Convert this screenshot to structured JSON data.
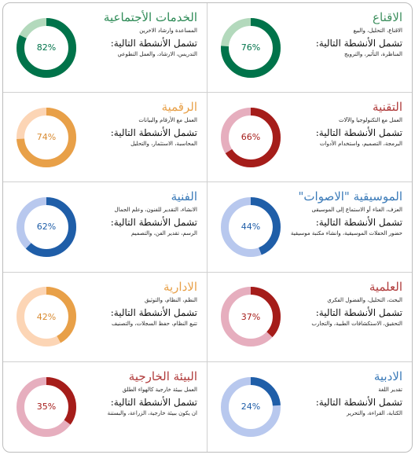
{
  "activities_heading": "تشمل الأنشطة التالية:",
  "cards": [
    {
      "title": "الخدمات الأجتماعية",
      "desc": "المساعدة وارشاد الاخرين",
      "acts": "التدريس، الارشاد، والعمل التطوعي",
      "percent": 82,
      "pct_label": "82%",
      "fg": "#00734a",
      "bg": "#b3d9bc",
      "title_color": "#2e8b57"
    },
    {
      "title": "الاقناع",
      "desc": "الاقناع، التحليل، والبيع",
      "acts": "المناظرة، التأثير، والترويج",
      "percent": 76,
      "pct_label": "76%",
      "fg": "#00734a",
      "bg": "#b3d9bc",
      "title_color": "#3d8f5e"
    },
    {
      "title": "الرقمية",
      "desc": "العمل مع الأرقام والبيانات",
      "acts": "المحاسبة، الاستثمار، والتحليل",
      "percent": 74,
      "pct_label": "74%",
      "fg": "#e8a048",
      "bg": "#fcd5b5",
      "title_color": "#e8a048"
    },
    {
      "title": "التقنية",
      "desc": "العمل مع التكنولوجيا والآلات",
      "acts": "البرمجة، التصميم، واستخدام الأدوات",
      "percent": 66,
      "pct_label": "66%",
      "fg": "#a51d1a",
      "bg": "#e6aebe",
      "title_color": "#b03a3a"
    },
    {
      "title": "الفنية",
      "desc": "الانشاء، التقدير للفنون، وعلم الجمال",
      "acts": "الرسم، تقدير الفن، والتصميم",
      "percent": 62,
      "pct_label": "62%",
      "fg": "#1f5ea8",
      "bg": "#b8c8ee",
      "title_color": "#3a7ab8"
    },
    {
      "title": "الموسيقية \"الاصوات\"",
      "desc": "العزف، الغناء أو الاستماع إلى الموسيقى",
      "acts": "حضور الحفلات الموسيقية، وانشاء مكتبة موسيقية",
      "percent": 44,
      "pct_label": "44%",
      "fg": "#1f5ea8",
      "bg": "#b8c8ee",
      "title_color": "#3a7ab8"
    },
    {
      "title": "الادارية",
      "desc": "النظم، النظام، والتوثيق",
      "acts": "تتبع النظام، حفظ السجلات، والتصنيف",
      "percent": 42,
      "pct_label": "42%",
      "fg": "#e8a048",
      "bg": "#fcd5b5",
      "title_color": "#e8a048"
    },
    {
      "title": "العلمية",
      "desc": "البحث، التحليل، والفضول الفكري",
      "acts": "التحقيق، الاستكشافات الطبية، والتجارب",
      "percent": 37,
      "pct_label": "37%",
      "fg": "#a51d1a",
      "bg": "#e6aebe",
      "title_color": "#b03a3a"
    },
    {
      "title": "البيئة الخارجية",
      "desc": "العمل ببيئة خارجية كالهواء الطلق",
      "acts": "ان يكون ببيئة خارجية، الزراعة، والبستنة",
      "percent": 35,
      "pct_label": "35%",
      "fg": "#a51d1a",
      "bg": "#e6aebe",
      "title_color": "#b03a3a"
    },
    {
      "title": "الادبية",
      "desc": "تقدير اللغة",
      "acts": "الكتابة، القراءة، والتحرير",
      "percent": 24,
      "pct_label": "24%",
      "fg": "#1f5ea8",
      "bg": "#b8c8ee",
      "title_color": "#3a7ab8"
    }
  ]
}
